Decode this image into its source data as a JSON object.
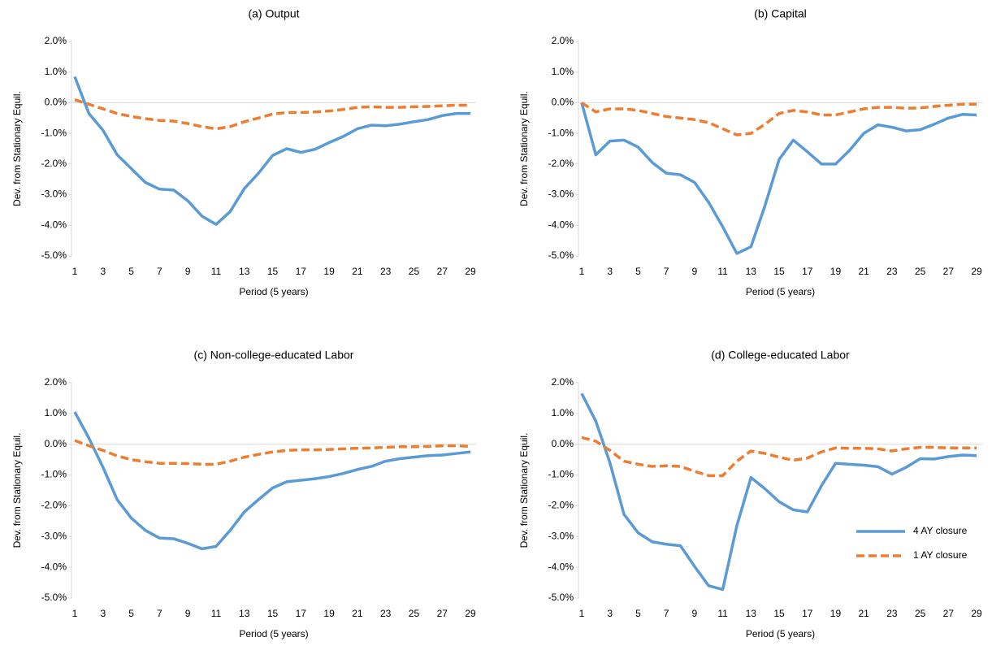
{
  "chart_data": [
    {
      "type": "line",
      "title": "(a) Output",
      "xlabel": "Period (5 years)",
      "ylabel": "Dev. from Stationary Equil.",
      "x": [
        1,
        2,
        3,
        4,
        5,
        6,
        7,
        8,
        9,
        10,
        11,
        12,
        13,
        14,
        15,
        16,
        17,
        18,
        19,
        20,
        21,
        22,
        23,
        24,
        25,
        26,
        27,
        28,
        29
      ],
      "series": [
        {
          "color": "#5b9bd5",
          "dashed": false,
          "values": [
            0.85,
            -0.35,
            -0.9,
            -1.7,
            -2.15,
            -2.6,
            -2.82,
            -2.85,
            -3.2,
            -3.7,
            -3.97,
            -3.55,
            -2.8,
            -2.3,
            -1.72,
            -1.5,
            -1.62,
            -1.52,
            -1.3,
            -1.1,
            -0.85,
            -0.73,
            -0.75,
            -0.7,
            -0.62,
            -0.55,
            -0.42,
            -0.35,
            -0.35
          ]
        },
        {
          "color": "#ed7d31",
          "dashed": true,
          "values": [
            0.1,
            -0.05,
            -0.2,
            -0.35,
            -0.45,
            -0.52,
            -0.58,
            -0.6,
            -0.68,
            -0.78,
            -0.85,
            -0.78,
            -0.62,
            -0.5,
            -0.37,
            -0.32,
            -0.32,
            -0.3,
            -0.27,
            -0.22,
            -0.15,
            -0.13,
            -0.15,
            -0.15,
            -0.13,
            -0.12,
            -0.1,
            -0.08,
            -0.08
          ]
        }
      ],
      "xlim": [
        0.77,
        29.4
      ],
      "xticks": [
        1,
        3,
        5,
        7,
        9,
        11,
        13,
        15,
        17,
        19,
        21,
        23,
        25,
        27,
        29
      ],
      "ylim": [
        -5,
        2
      ],
      "yticks": [
        {
          "value": -5,
          "label": "-5.0%"
        },
        {
          "value": -4,
          "label": "-4.0%"
        },
        {
          "value": -3,
          "label": "-3.0%"
        },
        {
          "value": -2,
          "label": "-2.0%"
        },
        {
          "value": -1,
          "label": "-1.0%"
        },
        {
          "value": 0,
          "label": "0.0%"
        },
        {
          "value": 1,
          "label": "1.0%"
        },
        {
          "value": 2,
          "label": "2.0%"
        }
      ]
    },
    {
      "type": "line",
      "title": "(b) Capital",
      "xlabel": "Period (5 years)",
      "ylabel": "Dev. from Stationary Equil.",
      "x": [
        1,
        2,
        3,
        4,
        5,
        6,
        7,
        8,
        9,
        10,
        11,
        12,
        13,
        14,
        15,
        16,
        17,
        18,
        19,
        20,
        21,
        22,
        23,
        24,
        25,
        26,
        27,
        28,
        29
      ],
      "series": [
        {
          "color": "#5b9bd5",
          "dashed": false,
          "values": [
            0.0,
            -1.7,
            -1.25,
            -1.22,
            -1.45,
            -1.95,
            -2.3,
            -2.35,
            -2.6,
            -3.25,
            -4.05,
            -4.92,
            -4.7,
            -3.35,
            -1.85,
            -1.22,
            -1.6,
            -2.0,
            -2.0,
            -1.55,
            -1.0,
            -0.72,
            -0.8,
            -0.92,
            -0.88,
            -0.7,
            -0.5,
            -0.38,
            -0.4
          ]
        },
        {
          "color": "#ed7d31",
          "dashed": true,
          "values": [
            0.0,
            -0.3,
            -0.2,
            -0.2,
            -0.25,
            -0.35,
            -0.45,
            -0.5,
            -0.55,
            -0.65,
            -0.85,
            -1.05,
            -1.0,
            -0.7,
            -0.35,
            -0.25,
            -0.3,
            -0.4,
            -0.4,
            -0.3,
            -0.2,
            -0.15,
            -0.15,
            -0.18,
            -0.17,
            -0.12,
            -0.08,
            -0.05,
            -0.05
          ]
        }
      ],
      "xlim": [
        0.77,
        29.4
      ],
      "xticks": [
        1,
        3,
        5,
        7,
        9,
        11,
        13,
        15,
        17,
        19,
        21,
        23,
        25,
        27,
        29
      ],
      "ylim": [
        -5,
        2
      ],
      "yticks": [
        {
          "value": -5,
          "label": "-5.0%"
        },
        {
          "value": -4,
          "label": "-4.0%"
        },
        {
          "value": -3,
          "label": "-3.0%"
        },
        {
          "value": -2,
          "label": "-2.0%"
        },
        {
          "value": -1,
          "label": "-1.0%"
        },
        {
          "value": 0,
          "label": "0.0%"
        },
        {
          "value": 1,
          "label": "1.0%"
        },
        {
          "value": 2,
          "label": "2.0%"
        }
      ]
    },
    {
      "type": "line",
      "title": "(c) Non-college-educated Labor",
      "xlabel": "Period (5 years)",
      "ylabel": "Dev. from Stationary Equil.",
      "x": [
        1,
        2,
        3,
        4,
        5,
        6,
        7,
        8,
        9,
        10,
        11,
        12,
        13,
        14,
        15,
        16,
        17,
        18,
        19,
        20,
        21,
        22,
        23,
        24,
        25,
        26,
        27,
        28,
        29
      ],
      "series": [
        {
          "color": "#5b9bd5",
          "dashed": false,
          "values": [
            1.05,
            0.2,
            -0.75,
            -1.8,
            -2.4,
            -2.8,
            -3.05,
            -3.07,
            -3.22,
            -3.4,
            -3.32,
            -2.8,
            -2.2,
            -1.8,
            -1.42,
            -1.22,
            -1.17,
            -1.12,
            -1.05,
            -0.95,
            -0.82,
            -0.72,
            -0.55,
            -0.47,
            -0.42,
            -0.37,
            -0.35,
            -0.3,
            -0.25
          ]
        },
        {
          "color": "#ed7d31",
          "dashed": true,
          "values": [
            0.12,
            -0.05,
            -0.2,
            -0.38,
            -0.5,
            -0.57,
            -0.62,
            -0.62,
            -0.63,
            -0.65,
            -0.65,
            -0.55,
            -0.42,
            -0.33,
            -0.25,
            -0.2,
            -0.18,
            -0.18,
            -0.17,
            -0.15,
            -0.13,
            -0.12,
            -0.1,
            -0.08,
            -0.08,
            -0.07,
            -0.05,
            -0.05,
            -0.07
          ]
        }
      ],
      "xlim": [
        0.77,
        29.4
      ],
      "xticks": [
        1,
        3,
        5,
        7,
        9,
        11,
        13,
        15,
        17,
        19,
        21,
        23,
        25,
        27,
        29
      ],
      "ylim": [
        -5,
        2
      ],
      "yticks": [
        {
          "value": -5,
          "label": "-5.0%"
        },
        {
          "value": -4,
          "label": "-4.0%"
        },
        {
          "value": -3,
          "label": "-3.0%"
        },
        {
          "value": -2,
          "label": "-2.0%"
        },
        {
          "value": -1,
          "label": "-1.0%"
        },
        {
          "value": 0,
          "label": "0.0%"
        },
        {
          "value": 1,
          "label": "1.0%"
        },
        {
          "value": 2,
          "label": "2.0%"
        }
      ]
    },
    {
      "type": "line",
      "title": "(d) College-educated Labor",
      "xlabel": "Period (5 years)",
      "ylabel": "Dev. from Stationary Equil.",
      "legend": "lower right",
      "x": [
        1,
        2,
        3,
        4,
        5,
        6,
        7,
        8,
        9,
        10,
        11,
        12,
        13,
        14,
        15,
        16,
        17,
        18,
        19,
        20,
        21,
        22,
        23,
        24,
        25,
        26,
        27,
        28,
        29
      ],
      "series": [
        {
          "name": "4 AY closure",
          "color": "#5b9bd5",
          "dashed": false,
          "values": [
            1.65,
            0.75,
            -0.6,
            -2.28,
            -2.88,
            -3.17,
            -3.25,
            -3.3,
            -3.97,
            -4.6,
            -4.72,
            -2.65,
            -1.08,
            -1.45,
            -1.87,
            -2.13,
            -2.2,
            -1.35,
            -0.62,
            -0.65,
            -0.68,
            -0.73,
            -0.97,
            -0.75,
            -0.47,
            -0.48,
            -0.4,
            -0.35,
            -0.37
          ]
        },
        {
          "name": "1 AY closure",
          "color": "#ed7d31",
          "dashed": true,
          "values": [
            0.22,
            0.1,
            -0.2,
            -0.55,
            -0.65,
            -0.72,
            -0.7,
            -0.72,
            -0.88,
            -1.02,
            -1.02,
            -0.55,
            -0.22,
            -0.3,
            -0.42,
            -0.52,
            -0.45,
            -0.25,
            -0.12,
            -0.13,
            -0.13,
            -0.15,
            -0.22,
            -0.15,
            -0.1,
            -0.1,
            -0.12,
            -0.12,
            -0.12
          ]
        }
      ],
      "xlim": [
        0.77,
        29.4
      ],
      "xticks": [
        1,
        3,
        5,
        7,
        9,
        11,
        13,
        15,
        17,
        19,
        21,
        23,
        25,
        27,
        29
      ],
      "ylim": [
        -5,
        2
      ],
      "yticks": [
        {
          "value": -5,
          "label": "-5.0%"
        },
        {
          "value": -4,
          "label": "-4.0%"
        },
        {
          "value": -3,
          "label": "-3.0%"
        },
        {
          "value": -2,
          "label": "-2.0%"
        },
        {
          "value": -1,
          "label": "-1.0%"
        },
        {
          "value": 0,
          "label": "0.0%"
        },
        {
          "value": 1,
          "label": "1.0%"
        },
        {
          "value": 2,
          "label": "2.0%"
        }
      ]
    }
  ]
}
